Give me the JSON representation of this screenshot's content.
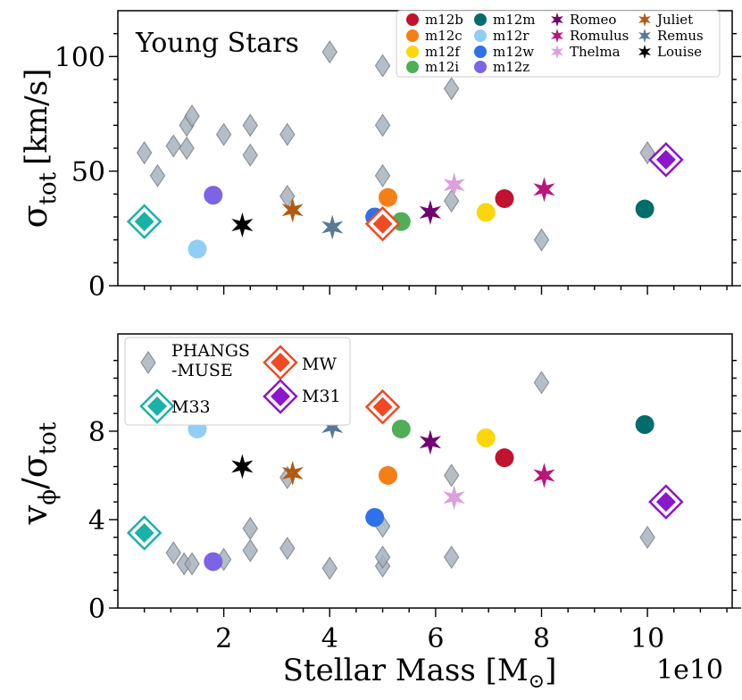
{
  "chart_data": [
    {
      "type": "scatter",
      "panel": "top",
      "annotation": "Young Stars",
      "ylabel_main": "σ",
      "ylabel_sub": "tot",
      "ylabel_unit": "[km/s]",
      "xlim": [
        0,
        11.6
      ],
      "ylim": [
        0,
        120
      ],
      "yticks": [
        0,
        50,
        100
      ],
      "phangs": [
        [
          0.5,
          58
        ],
        [
          0.75,
          48
        ],
        [
          1.05,
          61
        ],
        [
          1.3,
          60
        ],
        [
          1.3,
          70
        ],
        [
          1.4,
          74
        ],
        [
          2,
          66
        ],
        [
          2.5,
          57
        ],
        [
          2.5,
          70
        ],
        [
          3.2,
          66
        ],
        [
          3.2,
          39
        ],
        [
          4,
          102
        ],
        [
          5,
          96
        ],
        [
          5,
          70
        ],
        [
          5,
          48
        ],
        [
          6.3,
          86
        ],
        [
          6.3,
          37
        ],
        [
          8,
          20
        ],
        [
          10,
          58
        ]
      ],
      "simulations": [
        {
          "name": "m12b",
          "marker": "circle",
          "color": "#c1122f",
          "x": 7.3,
          "y": 38
        },
        {
          "name": "m12c",
          "marker": "circle",
          "color": "#f57f17",
          "x": 5.1,
          "y": 38.5
        },
        {
          "name": "m12f",
          "marker": "circle",
          "color": "#fdd60a",
          "x": 6.95,
          "y": 32
        },
        {
          "name": "m12i",
          "marker": "circle",
          "color": "#4fae57",
          "x": 5.35,
          "y": 28
        },
        {
          "name": "m12m",
          "marker": "circle",
          "color": "#006d6a",
          "x": 9.95,
          "y": 33.5
        },
        {
          "name": "m12r",
          "marker": "circle",
          "color": "#90cef6",
          "x": 1.5,
          "y": 16
        },
        {
          "name": "m12w",
          "marker": "circle",
          "color": "#2f71e8",
          "x": 4.85,
          "y": 30
        },
        {
          "name": "m12z",
          "marker": "circle",
          "color": "#7d63e6",
          "x": 1.8,
          "y": 39.5
        },
        {
          "name": "Romeo",
          "marker": "star",
          "color": "#72006e",
          "x": 5.9,
          "y": 32
        },
        {
          "name": "Romulus",
          "marker": "star",
          "color": "#b9157a",
          "x": 8.05,
          "y": 42
        },
        {
          "name": "Thelma",
          "marker": "star",
          "color": "#dca0dc",
          "x": 6.35,
          "y": 44
        },
        {
          "name": "Juliet",
          "marker": "star",
          "color": "#b25a12",
          "x": 3.3,
          "y": 33
        },
        {
          "name": "Remus",
          "marker": "star",
          "color": "#5a7896",
          "x": 4.05,
          "y": 25.5
        },
        {
          "name": "Louise",
          "marker": "star",
          "color": "#000000",
          "x": 2.35,
          "y": 26.5
        }
      ],
      "references": [
        {
          "name": "M33",
          "color": "#1ab2a8",
          "x": 0.5,
          "y": 28
        },
        {
          "name": "MW",
          "color": "#f04a24",
          "x": 5,
          "y": 27
        },
        {
          "name": "M31",
          "color": "#8b16cc",
          "x": 10.35,
          "y": 55
        }
      ]
    },
    {
      "type": "scatter",
      "panel": "bottom",
      "ylabel_main": "v",
      "ylabel_sub1": "ϕ",
      "ylabel_slash": "/σ",
      "ylabel_sub2": "tot",
      "xlabel": "Stellar Mass [M",
      "xlabel_sun": "⊙",
      "xlabel_close": "]",
      "xscale_label": "1e10",
      "xlim": [
        0,
        11.6
      ],
      "ylim": [
        0,
        12.4
      ],
      "yticks": [
        0,
        4,
        8
      ],
      "xticks": [
        2,
        4,
        6,
        8,
        10
      ],
      "phangs": [
        [
          1.05,
          2.5
        ],
        [
          1.25,
          2
        ],
        [
          1.4,
          2
        ],
        [
          2,
          2.2
        ],
        [
          2.5,
          2.6
        ],
        [
          2.5,
          3.6
        ],
        [
          3.2,
          2.7
        ],
        [
          3.2,
          5.9
        ],
        [
          4,
          1.8
        ],
        [
          5,
          1.9
        ],
        [
          5,
          2.3
        ],
        [
          5,
          3.7
        ],
        [
          6.3,
          2.3
        ],
        [
          6.3,
          6
        ],
        [
          8,
          10.2
        ],
        [
          10,
          3.2
        ]
      ],
      "simulations": [
        {
          "name": "m12b",
          "marker": "circle",
          "color": "#c1122f",
          "x": 7.3,
          "y": 6.8
        },
        {
          "name": "m12c",
          "marker": "circle",
          "color": "#f57f17",
          "x": 5.1,
          "y": 6
        },
        {
          "name": "m12f",
          "marker": "circle",
          "color": "#fdd60a",
          "x": 6.95,
          "y": 7.7
        },
        {
          "name": "m12i",
          "marker": "circle",
          "color": "#4fae57",
          "x": 5.35,
          "y": 8.1
        },
        {
          "name": "m12m",
          "marker": "circle",
          "color": "#006d6a",
          "x": 9.95,
          "y": 8.3
        },
        {
          "name": "m12r",
          "marker": "circle",
          "color": "#90cef6",
          "x": 1.5,
          "y": 8.1
        },
        {
          "name": "m12w",
          "marker": "circle",
          "color": "#2f71e8",
          "x": 4.85,
          "y": 4.1
        },
        {
          "name": "m12z",
          "marker": "circle",
          "color": "#7d63e6",
          "x": 1.8,
          "y": 2.1
        },
        {
          "name": "Romeo",
          "marker": "star",
          "color": "#72006e",
          "x": 5.9,
          "y": 7.5
        },
        {
          "name": "Romulus",
          "marker": "star",
          "color": "#b9157a",
          "x": 8.05,
          "y": 6
        },
        {
          "name": "Thelma",
          "marker": "star",
          "color": "#dca0dc",
          "x": 6.35,
          "y": 5
        },
        {
          "name": "Juliet",
          "marker": "star",
          "color": "#b25a12",
          "x": 3.3,
          "y": 6.1
        },
        {
          "name": "Remus",
          "marker": "star",
          "color": "#5a7896",
          "x": 4.05,
          "y": 8.2
        },
        {
          "name": "Louise",
          "marker": "star",
          "color": "#000000",
          "x": 2.35,
          "y": 6.4
        }
      ],
      "references": [
        {
          "name": "M33",
          "color": "#1ab2a8",
          "x": 0.5,
          "y": 3.4
        },
        {
          "name": "MW",
          "color": "#f04a24",
          "x": 5,
          "y": 9.1
        },
        {
          "name": "M31",
          "color": "#8b16cc",
          "x": 10.35,
          "y": 4.8
        }
      ]
    }
  ],
  "legend_top": {
    "entries": [
      "m12b",
      "m12c",
      "m12f",
      "m12i",
      "m12m",
      "m12r",
      "m12w",
      "m12z",
      "Romeo",
      "Romulus",
      "Thelma",
      "Remus",
      "Juliet",
      "Louise"
    ]
  },
  "legend_bottom": {
    "phangs_line1": "PHANGS",
    "phangs_line2": "-MUSE",
    "mw": "MW",
    "m33": "M33",
    "m31": "M31"
  },
  "colors": {
    "phangs_fill": "#a9b3bd",
    "phangs_edge": "#77818c"
  }
}
